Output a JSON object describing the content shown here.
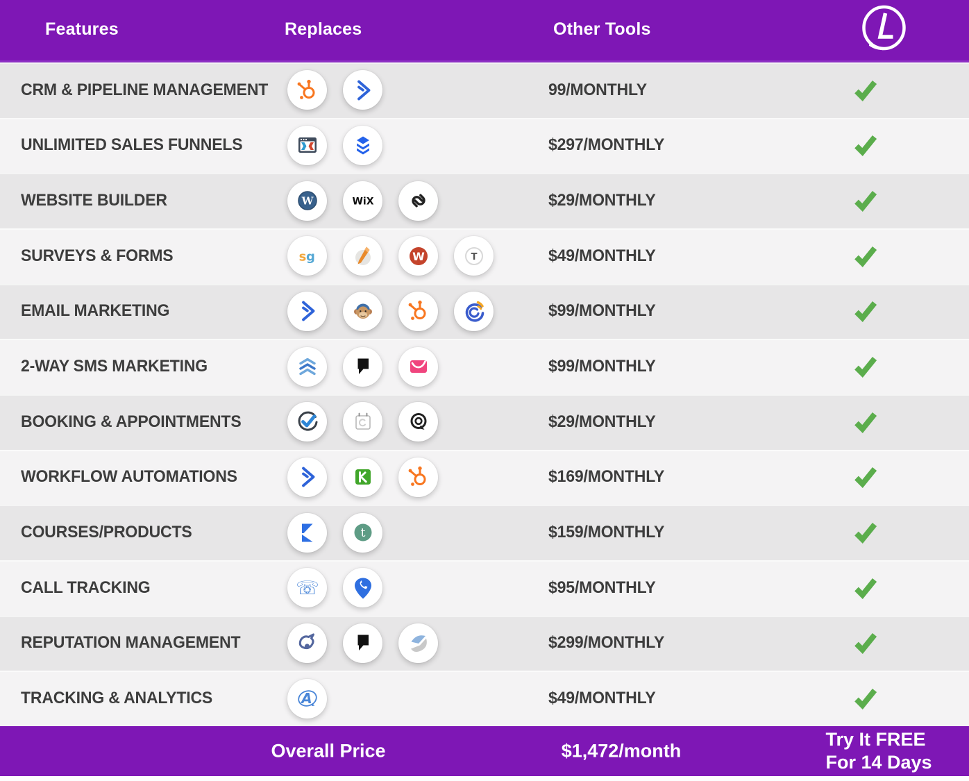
{
  "header": {
    "features_label": "Features",
    "replaces_label": "Replaces",
    "other_tools_label": "Other Tools",
    "logo_letter": "L"
  },
  "rows": [
    {
      "feature": "CRM & PIPELINE MANAGEMENT",
      "icons": [
        "hubspot",
        "activecampaign"
      ],
      "other_tools_price": "99/MONTHLY",
      "included": true
    },
    {
      "feature": "UNLIMITED SALES FUNNELS",
      "icons": [
        "clickfunnels",
        "leadpages"
      ],
      "other_tools_price": "$297/MONTHLY",
      "included": true
    },
    {
      "feature": "WEBSITE BUILDER",
      "icons": [
        "wordpress",
        "wix",
        "squarespace"
      ],
      "other_tools_price": "$29/MONTHLY",
      "included": true
    },
    {
      "feature": "SURVEYS & FORMS",
      "icons": [
        "surveygizmo",
        "pen",
        "wufoo",
        "typeform"
      ],
      "other_tools_price": "$49/MONTHLY",
      "included": true
    },
    {
      "feature": "EMAIL MARKETING",
      "icons": [
        "activecampaign",
        "mailchimp",
        "hubspot",
        "constantcontact"
      ],
      "other_tools_price": "$99/MONTHLY",
      "included": true
    },
    {
      "feature": "2-WAY SMS MARKETING",
      "icons": [
        "sms-chevrons",
        "podium",
        "envelope"
      ],
      "other_tools_price": "$99/MONTHLY",
      "included": true
    },
    {
      "feature": "BOOKING & APPOINTMENTS",
      "icons": [
        "check-circle",
        "calendar",
        "acuity"
      ],
      "other_tools_price": "$29/MONTHLY",
      "included": true
    },
    {
      "feature": "WORKFLOW AUTOMATIONS",
      "icons": [
        "activecampaign",
        "keap",
        "hubspot"
      ],
      "other_tools_price": "$169/MONTHLY",
      "included": true
    },
    {
      "feature": "COURSES/PRODUCTS",
      "icons": [
        "kajabi",
        "teachable"
      ],
      "other_tools_price": "$159/MONTHLY",
      "included": true
    },
    {
      "feature": "CALL TRACKING",
      "icons": [
        "phone",
        "map-pin-phone"
      ],
      "other_tools_price": "$95/MONTHLY",
      "included": true
    },
    {
      "feature": "REPUTATION MANAGEMENT",
      "icons": [
        "bird",
        "podium",
        "swoosh"
      ],
      "other_tools_price": "$299/MONTHLY",
      "included": true
    },
    {
      "feature": "TRACKING & ANALYTICS",
      "icons": [
        "analytics-a"
      ],
      "other_tools_price": "$49/MONTHLY",
      "included": true
    }
  ],
  "footer": {
    "overall_price_label": "Overall Price",
    "overall_price_value": "$1,472/month",
    "cta_line1": "Try It FREE",
    "cta_line2": "For 14 Days"
  },
  "colors": {
    "brand_purple": "#7E17B5",
    "check_green": "#5BAD4C",
    "row_dark": "#E7E6E7",
    "row_light": "#F4F3F4",
    "text": "#3D3D3D"
  }
}
